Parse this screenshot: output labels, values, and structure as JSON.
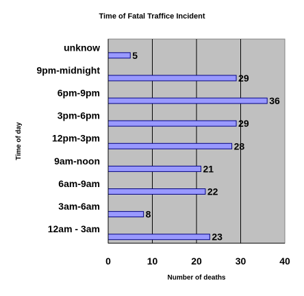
{
  "chart_data": {
    "type": "bar",
    "orientation": "horizontal",
    "title": "Time of Fatal Traffice Incident",
    "xlabel": "Number of deaths",
    "ylabel": "Time of day",
    "categories": [
      "12am - 3am",
      "3am-6am",
      "6am-9am",
      "9am-noon",
      "12pm-3pm",
      "3pm-6pm",
      "6pm-9pm",
      "9pm-midnight",
      "unknow"
    ],
    "values": [
      23,
      8,
      22,
      21,
      28,
      29,
      36,
      29,
      5
    ],
    "xlim": [
      0,
      40
    ],
    "xticks": [
      0,
      10,
      20,
      30,
      40
    ],
    "grid": true,
    "legend": "none",
    "colors": {
      "bar_fill": "#9999ff",
      "bar_stroke": "#000080",
      "plot_bg": "#c0c0c0"
    }
  }
}
